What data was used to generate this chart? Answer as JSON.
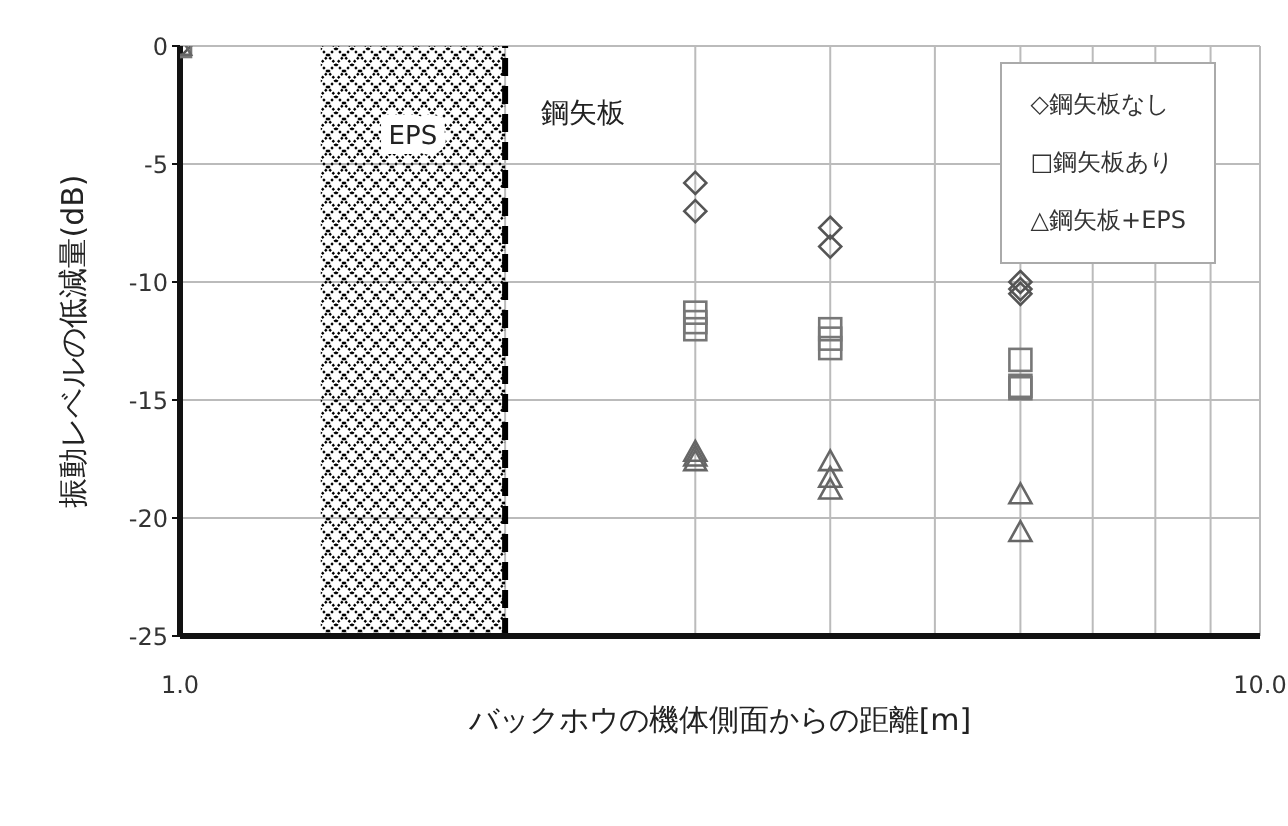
{
  "chart_data": {
    "type": "scatter",
    "xlabel": "バックホウの機体側面からの距離[m]",
    "ylabel": "振動レベルの低減量(dB)",
    "log": "x",
    "xlim": [
      1,
      10
    ],
    "xticks": [
      {
        "value": 1,
        "label": "1.0"
      },
      {
        "value": 2,
        "label": null
      },
      {
        "value": 3,
        "label": null
      },
      {
        "value": 4,
        "label": null
      },
      {
        "value": 5,
        "label": null
      },
      {
        "value": 6,
        "label": null
      },
      {
        "value": 7,
        "label": null
      },
      {
        "value": 8,
        "label": null
      },
      {
        "value": 9,
        "label": null
      },
      {
        "value": 10,
        "label": "10.0"
      }
    ],
    "ylim": [
      -25,
      0
    ],
    "yticks": [
      0,
      -5,
      -10,
      -15,
      -20,
      -25
    ],
    "grid": true,
    "legend": "top right",
    "bands": [
      {
        "axis": "x",
        "from": 1.35,
        "to": 2,
        "label": "EPS",
        "color": "#000000"
      }
    ],
    "ref_lines": [
      {
        "axis": "x",
        "value": 2,
        "label": "鋼矢板",
        "line_style": "dashed",
        "color": "#000000"
      }
    ],
    "series": [
      {
        "name": "◇鋼矢板なし",
        "color": "#555555",
        "marker": "diamond",
        "x": [
          1,
          3,
          3,
          4,
          4,
          6,
          6,
          6
        ],
        "values": [
          0,
          -5.8,
          -7.0,
          -7.7,
          -8.5,
          -10.0,
          -10.3,
          -10.5
        ]
      },
      {
        "name": "□鋼矢板あり",
        "color": "#777777",
        "marker": "square",
        "x": [
          1,
          3,
          3,
          3,
          4,
          4,
          4,
          6,
          6,
          6
        ],
        "values": [
          0,
          -11.3,
          -11.7,
          -12.0,
          -12.0,
          -12.4,
          -12.8,
          -13.3,
          -14.4,
          -14.5
        ]
      },
      {
        "name": "△鋼矢板+EPS",
        "color": "#666666",
        "marker": "triangle",
        "x": [
          1,
          3,
          3,
          3,
          4,
          4,
          4,
          6,
          6
        ],
        "values": [
          0,
          -17.2,
          -17.4,
          -17.6,
          -17.6,
          -18.3,
          -18.8,
          -19.0,
          -20.6
        ]
      }
    ]
  }
}
